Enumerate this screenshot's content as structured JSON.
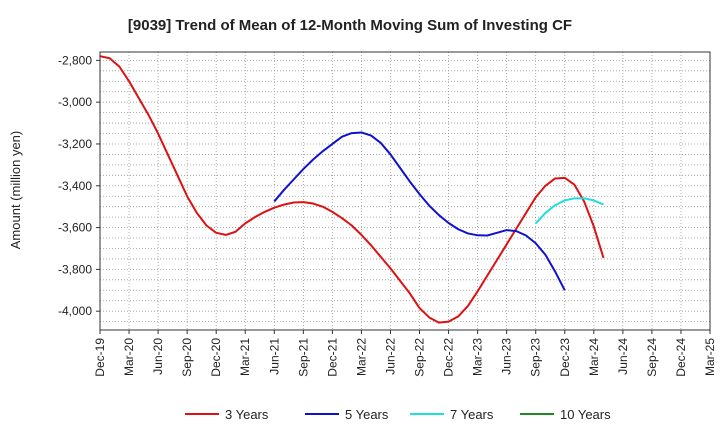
{
  "chart_data": {
    "type": "line",
    "title": "[9039]  Trend of Mean of 12-Month Moving Sum of Investing CF",
    "xlabel": "",
    "ylabel": "Amount (million yen)",
    "ylim": [
      -4090,
      -2760
    ],
    "yticks": [
      -2800,
      -3000,
      -3200,
      -3400,
      -3600,
      -3800,
      -4000
    ],
    "ytick_labels": [
      "-2,800",
      "-3,000",
      "-3,200",
      "-3,400",
      "-3,600",
      "-3,800",
      "-4,000"
    ],
    "x_start": "Dec-19",
    "x_end": "Mar-25",
    "x_tick_labels": [
      "Dec-19",
      "Mar-20",
      "Jun-20",
      "Sep-20",
      "Dec-20",
      "Mar-21",
      "Jun-21",
      "Sep-21",
      "Dec-21",
      "Mar-22",
      "Jun-22",
      "Sep-22",
      "Dec-22",
      "Mar-23",
      "Jun-23",
      "Sep-23",
      "Dec-23",
      "Mar-24",
      "Jun-24",
      "Sep-24",
      "Dec-24",
      "Mar-25"
    ],
    "grid": true,
    "legend_position": "bottom",
    "series": [
      {
        "name": "3 Years",
        "color": "#dd1111",
        "start_index": 0,
        "values": [
          -2780,
          -2790,
          -2830,
          -2900,
          -2980,
          -3060,
          -3150,
          -3250,
          -3350,
          -3450,
          -3530,
          -3590,
          -3625,
          -3635,
          -3620,
          -3580,
          -3550,
          -3525,
          -3505,
          -3490,
          -3480,
          -3478,
          -3485,
          -3500,
          -3525,
          -3555,
          -3590,
          -3635,
          -3685,
          -3740,
          -3795,
          -3855,
          -3915,
          -3985,
          -4030,
          -4055,
          -4050,
          -4025,
          -3975,
          -3905,
          -3830,
          -3755,
          -3680,
          -3605,
          -3530,
          -3455,
          -3400,
          -3365,
          -3362,
          -3395,
          -3475,
          -3595,
          -3745
        ]
      },
      {
        "name": "5 Years",
        "color": "#1111cc",
        "start_index": 18,
        "values": [
          -3475,
          -3420,
          -3370,
          -3320,
          -3275,
          -3235,
          -3200,
          -3165,
          -3148,
          -3145,
          -3160,
          -3195,
          -3250,
          -3315,
          -3380,
          -3440,
          -3495,
          -3540,
          -3578,
          -3608,
          -3628,
          -3637,
          -3638,
          -3625,
          -3612,
          -3617,
          -3638,
          -3675,
          -3730,
          -3810,
          -3900
        ]
      },
      {
        "name": "7 Years",
        "color": "#22dddd",
        "start_index": 45,
        "values": [
          -3580,
          -3530,
          -3493,
          -3470,
          -3460,
          -3460,
          -3470,
          -3490
        ]
      },
      {
        "name": "10 Years",
        "color": "#228822",
        "start_index": 0,
        "values": []
      }
    ]
  }
}
